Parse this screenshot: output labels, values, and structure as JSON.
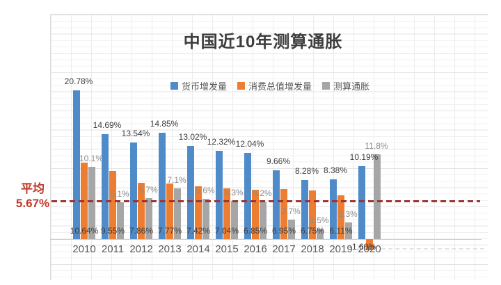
{
  "title": "中国近10年测算通胀",
  "legend": [
    {
      "label": "货币增发量",
      "color": "#4f8bc9"
    },
    {
      "label": "消费总值增发量",
      "color": "#ed7d31"
    },
    {
      "label": "测算通胀",
      "color": "#a6a6a6"
    }
  ],
  "average_annotation": {
    "line1": "平均",
    "line2": "5.67%"
  },
  "chart_data": {
    "type": "bar",
    "title": "中国近10年测算通胀",
    "categories": [
      "2010",
      "2011",
      "2012",
      "2013",
      "2014",
      "2015",
      "2016",
      "2017",
      "2018",
      "2019",
      "2020"
    ],
    "series": [
      {
        "name": "货币增发量",
        "color": "#4f8bc9",
        "values": [
          20.78,
          14.69,
          13.54,
          14.85,
          13.02,
          12.32,
          12.04,
          9.66,
          8.28,
          8.38,
          10.19
        ],
        "labels": [
          "20.78%",
          "14.69%",
          "13.54%",
          "14.85%",
          "13.02%",
          "12.32%",
          "12.04%",
          "9.66%",
          "8.28%",
          "8.38%",
          "10.19%"
        ]
      },
      {
        "name": "消费总值增发量",
        "color": "#ed7d31",
        "values": [
          10.64,
          9.55,
          7.86,
          7.77,
          7.42,
          7.04,
          6.85,
          6.95,
          6.75,
          6.11,
          -1.6
        ],
        "labels": [
          "10.64%",
          "9.55%",
          "7.86%",
          "7.77%",
          "7.42%",
          "7.04%",
          "6.85%",
          "6.95%",
          "6.75%",
          "6.11%",
          "-1.60%"
        ]
      },
      {
        "name": "测算通胀",
        "color": "#a6a6a6",
        "values": [
          10.1,
          5.1,
          5.7,
          7.1,
          5.6,
          5.3,
          5.2,
          2.7,
          1.5,
          2.3,
          11.8
        ],
        "labels": [
          "10.1%",
          "5.1%",
          "5.7%",
          "7.1%",
          "5.6%",
          "5.3%",
          "5.2%",
          "2.7%",
          "1.5%",
          "2.3%",
          "11.8%"
        ]
      }
    ],
    "average_line": {
      "value": 5.67,
      "label": "平均 5.67%",
      "color": "#9c3434",
      "style": "dashed"
    },
    "ylim": [
      -2,
      22
    ],
    "grid": true,
    "legend_position": "top-center"
  }
}
